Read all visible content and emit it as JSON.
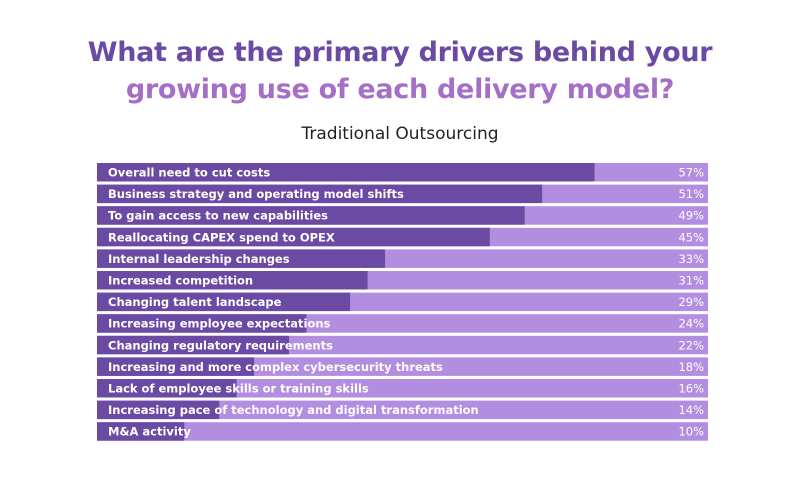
{
  "title": {
    "line1": "What are the primary drivers behind your",
    "line2": "growing use of each delivery model?"
  },
  "colors": {
    "title_line1": "#6b4aa3",
    "title_line2": "#a56fc8",
    "bar_fill": "#6b4aa3",
    "bar_track": "#b38ee0"
  },
  "chart_data": {
    "type": "bar",
    "orientation": "horizontal",
    "subtitle": "Traditional Outsourcing",
    "xlim": [
      0,
      70
    ],
    "grid": false,
    "categories": [
      "Overall need to cut costs",
      "Business strategy and operating model shifts",
      "To gain access to new capabilities",
      "Reallocating CAPEX spend to OPEX",
      "Internal leadership changes",
      "Increased competition",
      "Changing talent landscape",
      "Increasing employee expectations",
      "Changing regulatory requirements",
      "Increasing and more complex cybersecurity threats",
      "Lack of employee skills or training skills",
      "Increasing pace of technology and digital transformation",
      "M&A activity"
    ],
    "values": [
      57,
      51,
      49,
      45,
      33,
      31,
      29,
      24,
      22,
      18,
      16,
      14,
      10
    ],
    "value_labels": [
      "57%",
      "51%",
      "49%",
      "45%",
      "33%",
      "31%",
      "29%",
      "24%",
      "22%",
      "18%",
      "16%",
      "14%",
      "10%"
    ]
  }
}
